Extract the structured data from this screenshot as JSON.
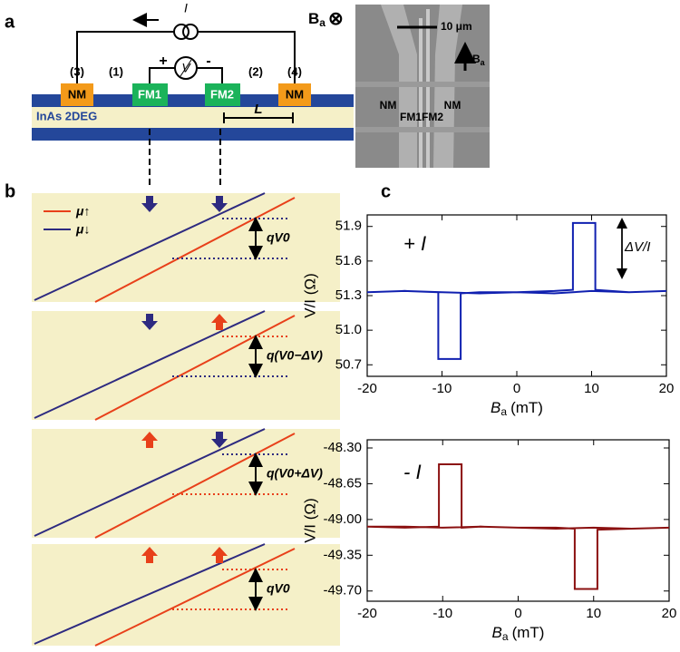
{
  "panel_labels": [
    "a",
    "b",
    "c"
  ],
  "device": {
    "terminals": [
      "(3)",
      "(1)",
      "(2)",
      "(4)"
    ],
    "contacts": [
      "NM",
      "FM1",
      "FM2",
      "NM"
    ],
    "source": "I",
    "voltmeter": "V",
    "plus": "+",
    "minus": "-",
    "field": "B",
    "field_sub": "a",
    "field_symbol": "⊗",
    "substrate": "InAs 2DEG",
    "length": "L"
  },
  "micrograph": {
    "scale": "10 μm",
    "field": "B",
    "field_sub": "a",
    "labels": [
      "NM",
      "NM",
      "FM1FM2"
    ]
  },
  "diagram": {
    "legend": [
      "μ↑",
      "μ↓"
    ],
    "gaps": [
      "qV0",
      "q(V0−ΔV)",
      "q(V0+ΔV)",
      "qV0"
    ]
  },
  "chart_data": [
    {
      "type": "line",
      "color": "#1020b0",
      "ylabel": "V/I (Ω)",
      "xlabel": "B",
      "xlabel_sub": "a",
      "xlabel_unit": "(mT)",
      "annotations": [
        "+ I",
        "ΔV/I"
      ],
      "x": [
        -20,
        -15,
        -10,
        -5,
        0,
        5,
        7.5,
        7.5,
        10.5,
        10.5,
        15,
        20,
        20,
        15,
        10,
        5,
        0,
        -5,
        -7.5,
        -7.5,
        -10.5,
        -10.5,
        -15,
        -20
      ],
      "values": [
        51.33,
        51.34,
        51.33,
        51.32,
        51.33,
        51.34,
        51.35,
        51.93,
        51.93,
        51.35,
        51.33,
        51.34,
        51.34,
        51.33,
        51.34,
        51.32,
        51.33,
        51.33,
        51.32,
        50.75,
        50.75,
        51.33,
        51.34,
        51.33
      ],
      "xlim": [
        -20,
        20
      ],
      "xticks": [
        -20,
        -10,
        0,
        10,
        20
      ],
      "ylim": [
        50.6,
        52.0
      ],
      "yticks": [
        50.7,
        {
          "value": 51.0,
          "label": "51.0"
        },
        51.3,
        51.6,
        51.9
      ]
    },
    {
      "type": "line",
      "color": "#8b1010",
      "ylabel": "V/I (Ω)",
      "xlabel": "B",
      "xlabel_sub": "a",
      "xlabel_unit": "(mT)",
      "annotations": [
        "- I"
      ],
      "x": [
        -20,
        -15,
        -10.5,
        -10.5,
        -7.5,
        -7.5,
        -5,
        0,
        5,
        10,
        15,
        20,
        20,
        15,
        10.5,
        10.5,
        7.5,
        7.5,
        5,
        0,
        -5,
        -10,
        -15,
        -20
      ],
      "values": [
        -49.07,
        -49.08,
        -49.07,
        -48.46,
        -48.46,
        -49.08,
        -49.07,
        -49.08,
        -49.09,
        -49.08,
        -49.09,
        -49.08,
        -49.08,
        -49.09,
        -49.1,
        -49.68,
        -49.68,
        -49.09,
        -49.08,
        -49.08,
        -49.07,
        -49.08,
        -49.07,
        -49.07
      ],
      "xlim": [
        -20,
        20
      ],
      "xticks": [
        -20,
        -10,
        0,
        10,
        20
      ],
      "ylim": [
        -49.8,
        -48.22
      ],
      "yticks": [
        {
          "value": -48.3,
          "label": "-48.30"
        },
        {
          "value": -48.65,
          "label": "-48.65"
        },
        {
          "value": -49.0,
          "label": "-49.00"
        },
        {
          "value": -49.35,
          "label": "-49.35"
        },
        {
          "value": -49.7,
          "label": "-49.70"
        }
      ]
    }
  ]
}
